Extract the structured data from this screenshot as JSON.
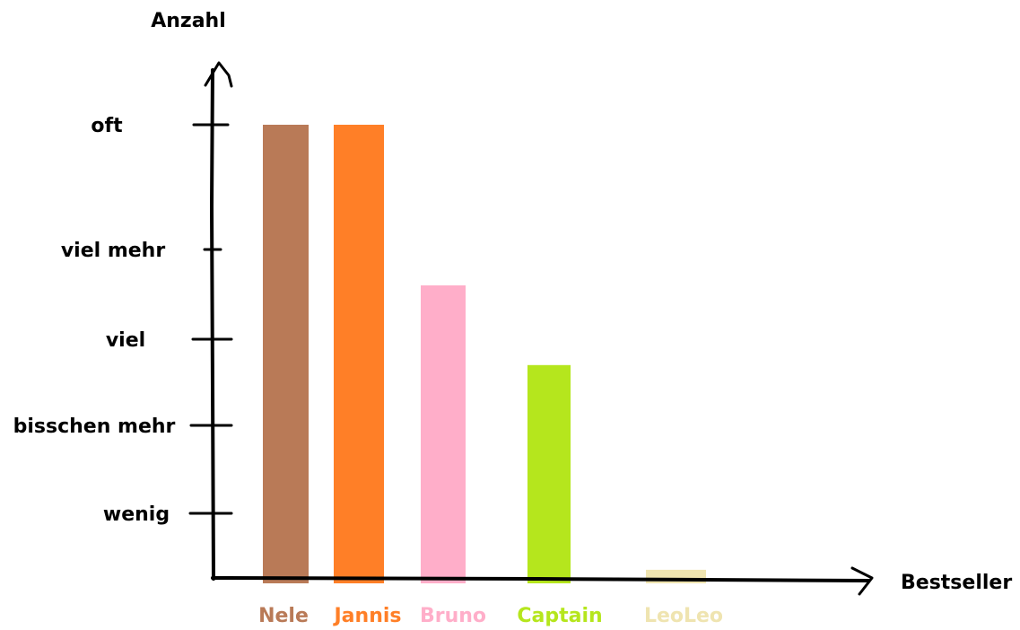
{
  "chart_data": {
    "type": "bar",
    "title": "",
    "ylabel": "Anzahl",
    "xlabel": "Bestseller",
    "y_tick_labels": [
      "wenig",
      "bisschen mehr",
      "viel",
      "viel mehr",
      "oft"
    ],
    "categories": [
      "Nele",
      "Jannis",
      "Bruno",
      "Captain",
      "LeoLeo"
    ],
    "values": [
      5.0,
      5.0,
      3.6,
      2.7,
      0.15
    ],
    "ylim": [
      0,
      5
    ],
    "grid": false,
    "legend": "none",
    "colors": [
      "#b97a57",
      "#ff7f27",
      "#ffaec9",
      "#b5e61d",
      "#efe4b0"
    ],
    "axis_color": "#000000"
  }
}
